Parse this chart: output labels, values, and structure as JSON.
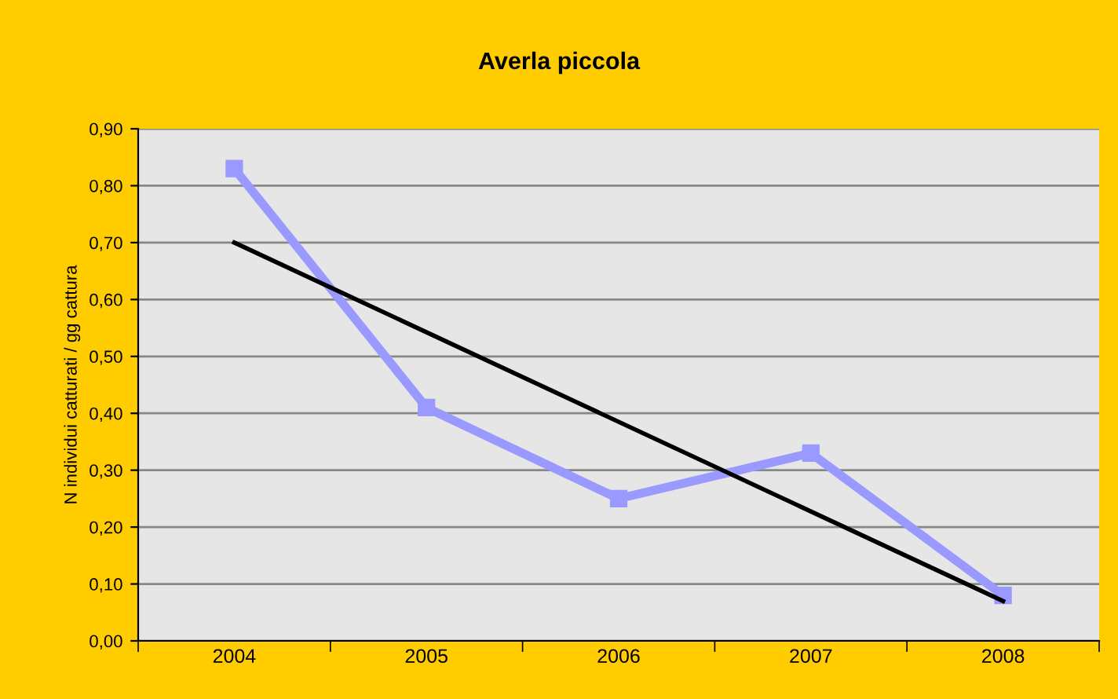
{
  "chart_data": {
    "type": "line",
    "title": "Averla piccola",
    "ylabel": "N individui catturati / gg cattura",
    "categories": [
      "2004",
      "2005",
      "2006",
      "2007",
      "2008"
    ],
    "series": [
      {
        "color": "#9999ff",
        "marker": "square",
        "values": [
          0.83,
          0.41,
          0.25,
          0.33,
          0.08
        ]
      },
      {
        "color": "#000000",
        "marker": "none",
        "values": [
          0.7,
          null,
          null,
          null,
          0.07
        ]
      }
    ],
    "ylim": [
      0,
      0.9
    ],
    "yticks": [
      {
        "value": 0,
        "label": "0,00"
      },
      {
        "value": 0.1,
        "label": "0,10"
      },
      {
        "value": 0.2,
        "label": "0,20"
      },
      {
        "value": 0.3,
        "label": "0,30"
      },
      {
        "value": 0.4,
        "label": "0,40"
      },
      {
        "value": 0.5,
        "label": "0,50"
      },
      {
        "value": 0.6,
        "label": "0,60"
      },
      {
        "value": 0.7,
        "label": "0,70"
      },
      {
        "value": 0.8,
        "label": "0,80"
      },
      {
        "value": 0.9,
        "label": "0,90"
      }
    ],
    "grid": "y",
    "legend": false
  }
}
